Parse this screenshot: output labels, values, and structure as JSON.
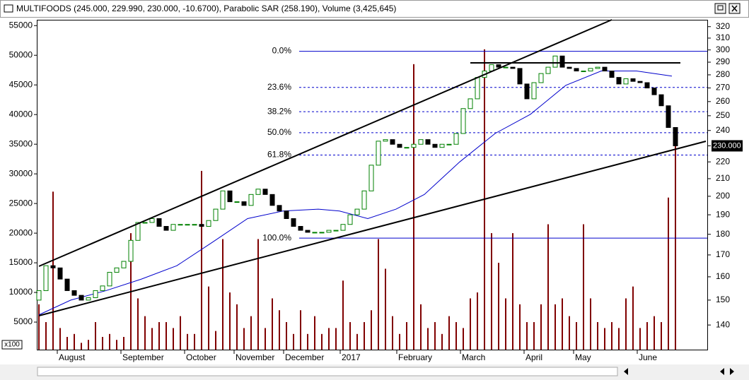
{
  "chart_data": {
    "type": "candlestick",
    "title": "MULTIFOODS (245.000, 229.990, 230.000, -10.6700), Parabolic SAR (258.190), Volume (3,425,645)",
    "categories": [
      null,
      null,
      null,
      "August",
      null,
      null,
      null,
      null,
      null,
      null,
      null,
      null,
      "September",
      null,
      null,
      null,
      null,
      null,
      null,
      null,
      null,
      "October",
      null,
      null,
      null,
      null,
      null,
      null,
      "November",
      null,
      null,
      null,
      null,
      null,
      null,
      "December",
      null,
      null,
      null,
      null,
      null,
      null,
      null,
      "2017",
      null,
      null,
      null,
      null,
      null,
      null,
      null,
      "February",
      null,
      null,
      null,
      null,
      null,
      null,
      null,
      null,
      "March",
      null,
      null,
      null,
      null,
      null,
      null,
      null,
      null,
      "April",
      null,
      null,
      null,
      null,
      null,
      null,
      "May",
      null,
      null,
      null,
      null,
      null,
      null,
      null,
      null,
      "June",
      null,
      null,
      null,
      null,
      null
    ],
    "open": [
      150,
      154,
      165,
      164,
      159,
      154,
      152,
      150,
      151,
      154,
      156,
      162,
      164,
      167,
      177,
      186,
      186,
      188,
      184,
      182,
      185,
      185,
      185,
      185,
      184,
      187,
      193,
      203,
      197,
      197,
      195,
      201,
      204,
      201,
      195,
      192,
      188,
      184,
      182,
      181,
      181,
      181,
      182,
      182,
      185,
      190,
      193,
      203,
      218,
      233,
      234,
      231,
      229,
      229,
      231,
      234,
      231,
      229,
      231,
      231,
      238,
      255,
      262,
      278,
      283,
      288,
      286,
      286,
      285,
      273,
      262,
      274,
      281,
      286,
      295,
      286,
      285,
      283,
      283,
      285,
      286,
      283,
      278,
      273,
      277,
      275,
      274,
      270,
      265,
      257,
      242
    ],
    "close": [
      154,
      165,
      164,
      159,
      154,
      152,
      150,
      151,
      154,
      156,
      162,
      164,
      167,
      177,
      186,
      186,
      188,
      184,
      182,
      185,
      185,
      185,
      185,
      184,
      187,
      193,
      203,
      197,
      197,
      195,
      201,
      204,
      201,
      195,
      192,
      188,
      184,
      182,
      181,
      181,
      181,
      182,
      182,
      185,
      190,
      193,
      203,
      218,
      233,
      234,
      231,
      229,
      229,
      231,
      234,
      231,
      229,
      231,
      231,
      238,
      255,
      262,
      278,
      283,
      288,
      286,
      286,
      285,
      273,
      262,
      274,
      281,
      286,
      295,
      286,
      285,
      283,
      283,
      285,
      286,
      283,
      278,
      273,
      277,
      275,
      274,
      270,
      265,
      257,
      242,
      230
    ],
    "up_color": "#008000",
    "down_color": "#000000",
    "volume": [
      8000,
      5000,
      27000,
      4000,
      2500,
      3000,
      1500,
      2000,
      5000,
      2500,
      3000,
      2000,
      2500,
      20000,
      9000,
      6000,
      4000,
      5000,
      5000,
      4000,
      6000,
      3000,
      3000,
      30500,
      11000,
      3500,
      19000,
      10000,
      8000,
      4000,
      6000,
      19000,
      4000,
      9000,
      7000,
      5000,
      3000,
      7000,
      3000,
      6000,
      3000,
      4000,
      4000,
      12000,
      5000,
      3000,
      5000,
      7000,
      19000,
      14000,
      6000,
      3000,
      5000,
      48500,
      8000,
      4000,
      5000,
      3000,
      6000,
      5000,
      4000,
      9000,
      10000,
      51000,
      20000,
      15000,
      9000,
      20000,
      8000,
      5000,
      5000,
      8000,
      21500,
      8000,
      9000,
      6000,
      5000,
      21500,
      9000,
      5000,
      4000,
      5000,
      4000,
      9000,
      11000,
      4000,
      5000,
      6000,
      5000,
      26000,
      35000
    ],
    "volume_color": "#800000",
    "volume_multiplier": "x100",
    "moving_average": {
      "color": "#0000cc",
      "x": [
        0,
        4.5,
        9.5,
        14.5,
        19.5,
        24.5,
        29.5,
        34.5,
        39.5,
        42.5,
        46.5,
        50.5,
        54.5,
        59.5,
        64.5,
        69.5,
        74.5,
        79.5,
        84.5,
        89.5
      ],
      "values": [
        144,
        150,
        154,
        159,
        165,
        176,
        188,
        192,
        193,
        192,
        188,
        193,
        201,
        220,
        238,
        251,
        272,
        283,
        283,
        279
      ]
    },
    "fibonacci": {
      "color": "#0000cc",
      "levels": [
        "0.0%",
        "23.6%",
        "38.2%",
        "50.0%",
        "61.8%",
        "100.0%"
      ],
      "prices": [
        298.9,
        270.4,
        252.8,
        238.5,
        224.2,
        178.1
      ]
    },
    "last_price": {
      "value": 230,
      "label": "230.000"
    },
    "ylim": [
      130,
      330
    ],
    "log_scale": true,
    "yticks": [
      140,
      150,
      160,
      170,
      180,
      190,
      200,
      210,
      220,
      230,
      240,
      250,
      260,
      270,
      280,
      290,
      300,
      310,
      320
    ],
    "y2lim": [
      0,
      56700
    ],
    "y2ticks": [
      5000,
      10000,
      15000,
      20000,
      25000,
      30000,
      35000,
      40000,
      45000,
      50000,
      55000
    ]
  }
}
